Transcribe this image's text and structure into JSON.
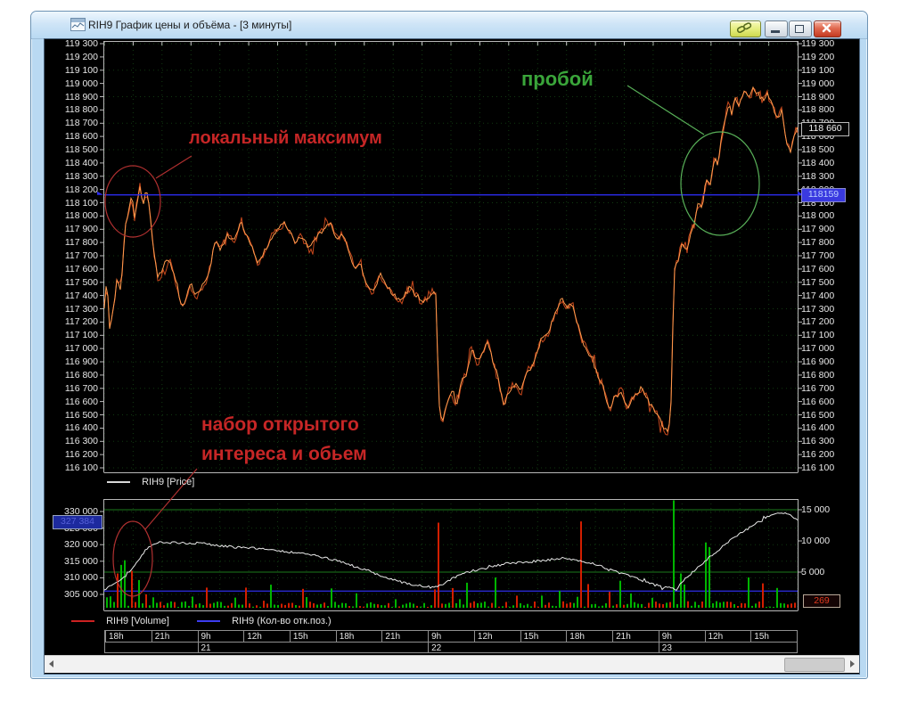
{
  "window": {
    "title": "RIH9 График цены и объёма - [3 минуты]",
    "buttons": {
      "link": "link",
      "minimize": "minimize",
      "restore": "restore",
      "close": "close"
    }
  },
  "price_pane": {
    "legend_label": "RIH9 [Price]",
    "axis": {
      "min": 116100,
      "max": 119300,
      "step": 100
    },
    "last_price_label": "118 660",
    "ref_price_label": "118159"
  },
  "volume_pane": {
    "legend_volume": "RIH9 [Volume]",
    "legend_oi": "RIH9 (Кол-во отк.поз.)",
    "left_axis": {
      "min": 305000,
      "max": 330000,
      "step": 5000
    },
    "right_axis": {
      "min": 5000,
      "max": 15000,
      "step": 5000
    },
    "oi_value_label": "327 384",
    "volume_value_label": "269"
  },
  "time_axis": {
    "hours": [
      "18h",
      "21h",
      "9h",
      "12h",
      "15h",
      "18h",
      "21h",
      "9h",
      "12h",
      "15h",
      "18h",
      "21h",
      "9h",
      "12h",
      "15h"
    ],
    "dates": [
      {
        "label": "21",
        "cell": 2
      },
      {
        "label": "22",
        "cell": 7
      },
      {
        "label": "23",
        "cell": 12
      }
    ]
  },
  "annotations": {
    "local_max": "локальный максимум",
    "breakout": "пробой",
    "oi_note": [
      "набор открытого",
      "интереса и обьем"
    ]
  },
  "colors": {
    "price_line": "#c8481c",
    "price_line_hi": "#ff9a4d",
    "oi_line": "#e9e9e9",
    "volume_up": "#00b400",
    "volume_down": "#d21e00",
    "ref_line": "#2b2bee",
    "grid": "#113911",
    "level_line": "#1b7a1b",
    "annotation_red": "#c62626",
    "annotation_green": "#3aa53a"
  },
  "chart_data": [
    {
      "type": "line",
      "name": "RIH9 [Price]",
      "pane": "price",
      "ylim": [
        116100,
        119300
      ],
      "last": 118660,
      "ref_line": 118159,
      "anchors": [
        [
          0,
          117300
        ],
        [
          0.004,
          117550
        ],
        [
          0.007,
          117150
        ],
        [
          0.012,
          117250
        ],
        [
          0.018,
          117500
        ],
        [
          0.024,
          117450
        ],
        [
          0.03,
          117900
        ],
        [
          0.035,
          118050
        ],
        [
          0.04,
          118150
        ],
        [
          0.044,
          117980
        ],
        [
          0.048,
          118120
        ],
        [
          0.052,
          118230
        ],
        [
          0.056,
          118080
        ],
        [
          0.06,
          118200
        ],
        [
          0.064,
          118100
        ],
        [
          0.068,
          117900
        ],
        [
          0.073,
          117650
        ],
        [
          0.078,
          117520
        ],
        [
          0.085,
          117600
        ],
        [
          0.09,
          117680
        ],
        [
          0.097,
          117620
        ],
        [
          0.105,
          117480
        ],
        [
          0.112,
          117300
        ],
        [
          0.118,
          117380
        ],
        [
          0.125,
          117480
        ],
        [
          0.132,
          117400
        ],
        [
          0.14,
          117450
        ],
        [
          0.15,
          117560
        ],
        [
          0.16,
          117800
        ],
        [
          0.168,
          117740
        ],
        [
          0.178,
          117860
        ],
        [
          0.188,
          117820
        ],
        [
          0.198,
          117960
        ],
        [
          0.205,
          117850
        ],
        [
          0.213,
          117780
        ],
        [
          0.22,
          117650
        ],
        [
          0.228,
          117700
        ],
        [
          0.24,
          117830
        ],
        [
          0.252,
          117920
        ],
        [
          0.26,
          117960
        ],
        [
          0.268,
          117870
        ],
        [
          0.276,
          117800
        ],
        [
          0.285,
          117850
        ],
        [
          0.295,
          117750
        ],
        [
          0.305,
          117820
        ],
        [
          0.315,
          117900
        ],
        [
          0.325,
          117950
        ],
        [
          0.335,
          117830
        ],
        [
          0.345,
          117870
        ],
        [
          0.355,
          117700
        ],
        [
          0.362,
          117580
        ],
        [
          0.37,
          117640
        ],
        [
          0.378,
          117480
        ],
        [
          0.388,
          117420
        ],
        [
          0.398,
          117560
        ],
        [
          0.408,
          117470
        ],
        [
          0.418,
          117400
        ],
        [
          0.428,
          117350
        ],
        [
          0.44,
          117460
        ],
        [
          0.452,
          117390
        ],
        [
          0.462,
          117350
        ],
        [
          0.472,
          117430
        ],
        [
          0.479,
          117400
        ],
        [
          0.482,
          116620
        ],
        [
          0.487,
          116430
        ],
        [
          0.493,
          116580
        ],
        [
          0.5,
          116680
        ],
        [
          0.508,
          116560
        ],
        [
          0.515,
          116750
        ],
        [
          0.523,
          116820
        ],
        [
          0.53,
          117000
        ],
        [
          0.538,
          116900
        ],
        [
          0.545,
          116950
        ],
        [
          0.553,
          117060
        ],
        [
          0.56,
          116920
        ],
        [
          0.568,
          116780
        ],
        [
          0.576,
          116560
        ],
        [
          0.584,
          116680
        ],
        [
          0.592,
          116730
        ],
        [
          0.6,
          116680
        ],
        [
          0.61,
          116820
        ],
        [
          0.62,
          116900
        ],
        [
          0.63,
          117050
        ],
        [
          0.64,
          117120
        ],
        [
          0.65,
          117260
        ],
        [
          0.66,
          117380
        ],
        [
          0.668,
          117300
        ],
        [
          0.675,
          117350
        ],
        [
          0.683,
          117180
        ],
        [
          0.69,
          117050
        ],
        [
          0.7,
          116950
        ],
        [
          0.71,
          116820
        ],
        [
          0.72,
          116700
        ],
        [
          0.728,
          116540
        ],
        [
          0.735,
          116620
        ],
        [
          0.745,
          116680
        ],
        [
          0.755,
          116550
        ],
        [
          0.765,
          116650
        ],
        [
          0.775,
          116700
        ],
        [
          0.785,
          116600
        ],
        [
          0.795,
          116520
        ],
        [
          0.805,
          116420
        ],
        [
          0.812,
          116360
        ],
        [
          0.816,
          116480
        ],
        [
          0.819,
          116700
        ],
        [
          0.821,
          117580
        ],
        [
          0.828,
          117680
        ],
        [
          0.835,
          117820
        ],
        [
          0.84,
          117740
        ],
        [
          0.846,
          117870
        ],
        [
          0.852,
          117950
        ],
        [
          0.857,
          118120
        ],
        [
          0.862,
          118060
        ],
        [
          0.868,
          118280
        ],
        [
          0.874,
          118230
        ],
        [
          0.88,
          118440
        ],
        [
          0.885,
          118390
        ],
        [
          0.89,
          118580
        ],
        [
          0.895,
          118720
        ],
        [
          0.9,
          118840
        ],
        [
          0.905,
          118780
        ],
        [
          0.91,
          118890
        ],
        [
          0.916,
          118830
        ],
        [
          0.922,
          118940
        ],
        [
          0.93,
          118880
        ],
        [
          0.937,
          118970
        ],
        [
          0.944,
          118920
        ],
        [
          0.95,
          118870
        ],
        [
          0.956,
          118940
        ],
        [
          0.962,
          118850
        ],
        [
          0.97,
          118740
        ],
        [
          0.977,
          118790
        ],
        [
          0.984,
          118570
        ],
        [
          0.99,
          118470
        ],
        [
          0.995,
          118620
        ],
        [
          1,
          118660
        ]
      ]
    },
    {
      "type": "line",
      "name": "RIH9 (Кол-во отк.поз.)",
      "pane": "volume",
      "ylim": [
        305000,
        330000
      ],
      "last": 327384,
      "anchors": [
        [
          0,
          306200
        ],
        [
          0.01,
          307600
        ],
        [
          0.02,
          308800
        ],
        [
          0.03,
          310500
        ],
        [
          0.04,
          312500
        ],
        [
          0.05,
          315500
        ],
        [
          0.06,
          318500
        ],
        [
          0.07,
          320200
        ],
        [
          0.08,
          320800
        ],
        [
          0.1,
          320600
        ],
        [
          0.12,
          320400
        ],
        [
          0.14,
          320500
        ],
        [
          0.16,
          319900
        ],
        [
          0.18,
          319400
        ],
        [
          0.2,
          319100
        ],
        [
          0.22,
          318900
        ],
        [
          0.24,
          318500
        ],
        [
          0.26,
          318000
        ],
        [
          0.28,
          317400
        ],
        [
          0.3,
          316900
        ],
        [
          0.32,
          315900
        ],
        [
          0.34,
          315000
        ],
        [
          0.36,
          313600
        ],
        [
          0.38,
          312100
        ],
        [
          0.4,
          310600
        ],
        [
          0.42,
          309200
        ],
        [
          0.44,
          308100
        ],
        [
          0.46,
          307500
        ],
        [
          0.48,
          307200
        ],
        [
          0.5,
          309600
        ],
        [
          0.52,
          311400
        ],
        [
          0.54,
          312400
        ],
        [
          0.56,
          313400
        ],
        [
          0.58,
          314300
        ],
        [
          0.6,
          314700
        ],
        [
          0.62,
          315000
        ],
        [
          0.64,
          315400
        ],
        [
          0.66,
          315900
        ],
        [
          0.68,
          315400
        ],
        [
          0.7,
          314500
        ],
        [
          0.72,
          313200
        ],
        [
          0.74,
          311700
        ],
        [
          0.76,
          310300
        ],
        [
          0.78,
          308800
        ],
        [
          0.8,
          307600
        ],
        [
          0.815,
          307000
        ],
        [
          0.825,
          306400
        ],
        [
          0.83,
          308000
        ],
        [
          0.84,
          310200
        ],
        [
          0.86,
          313800
        ],
        [
          0.88,
          317500
        ],
        [
          0.9,
          320800
        ],
        [
          0.92,
          323800
        ],
        [
          0.94,
          326300
        ],
        [
          0.955,
          328300
        ],
        [
          0.97,
          329400
        ],
        [
          0.985,
          329400
        ],
        [
          0.993,
          328300
        ],
        [
          1,
          327400
        ]
      ]
    },
    {
      "type": "bar",
      "name": "RIH9 [Volume]",
      "pane": "volume",
      "ylim_right": [
        0,
        15000
      ],
      "last": 269,
      "spikes": [
        [
          0.015,
          5200,
          "r"
        ],
        [
          0.02,
          6500,
          "g"
        ],
        [
          0.028,
          7200,
          "g"
        ],
        [
          0.035,
          5600,
          "r"
        ],
        [
          0.045,
          4200,
          "g"
        ],
        [
          0.24,
          3500,
          "g"
        ],
        [
          0.483,
          12900,
          "r"
        ],
        [
          0.52,
          3800,
          "g"
        ],
        [
          0.565,
          4600,
          "g"
        ],
        [
          0.685,
          13100,
          "r"
        ],
        [
          0.7,
          3600,
          "r"
        ],
        [
          0.745,
          4100,
          "g"
        ],
        [
          0.823,
          16300,
          "g"
        ],
        [
          0.832,
          5200,
          "g"
        ],
        [
          0.867,
          9900,
          "g"
        ],
        [
          0.874,
          9200,
          "g"
        ],
        [
          0.93,
          4600,
          "g"
        ],
        [
          0.952,
          3700,
          "r"
        ],
        [
          0.97,
          3000,
          "g"
        ]
      ],
      "levels_right": [
        15000,
        5000
      ],
      "flat_blue_level": 306000
    }
  ]
}
